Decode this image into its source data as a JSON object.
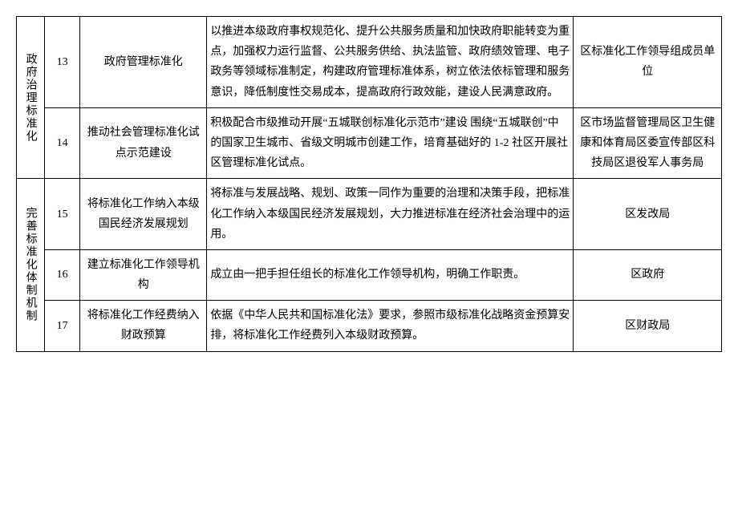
{
  "rows": [
    {
      "category": "政府治理标准化",
      "num": "13",
      "task": "政府管理标准化",
      "desc": "以推进本级政府事权规范化、提升公共服务质量和加快政府职能转变为重点，加强权力运行监督、公共服务供给、执法监管、政府绩效管理、电子政务等领域标准制定，构建政府管理标准体系，树立依法依标管理和服务意识，降低制度性交易成本，提高政府行政效能，建设人民满意政府。",
      "dept": "区标准化工作领导组成员单位"
    },
    {
      "num": "14",
      "task": "推动社会管理标准化试点示范建设",
      "desc": "积极配合市级推动开展“五城联创标准化示范市”建设 围绕“五城联创”中的国家卫生城市、省级文明城市创建工作，培育基础好的 1-2 社区开展社区管理标准化试点。",
      "dept": "区市场监督管理局区卫生健康和体育局区委宣传部区科技局区退役军人事务局"
    },
    {
      "category": "完善标准化体制机制",
      "num": "15",
      "task": "将标准化工作纳入本级国民经济发展规划",
      "desc": "将标准与发展战略、规划、政策一同作为重要的治理和决策手段，把标准化工作纳入本级国民经济发展规划，大力推进标准在经济社会治理中的运用。",
      "dept": "区发改局"
    },
    {
      "num": "16",
      "task": "建立标准化工作领导机构",
      "desc": "成立由一把手担任组长的标准化工作领导机构，明确工作职责。",
      "dept": "区政府"
    },
    {
      "num": "17",
      "task": "将标准化工作经费纳入财政预算",
      "desc": "依据《中华人民共和国标准化法》要求，参照市级标准化战略资金预算安排，将标准化工作经费列入本级财政预算。",
      "dept": "区财政局"
    }
  ]
}
